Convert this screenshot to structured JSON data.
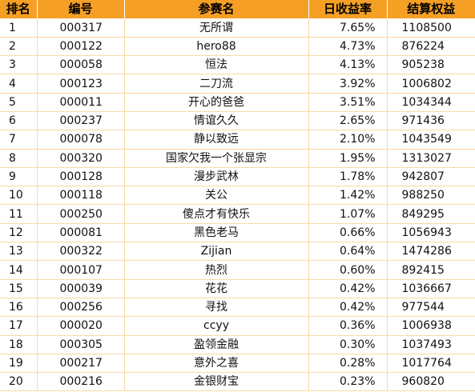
{
  "table": {
    "headers": {
      "rank": "排名",
      "id": "编号",
      "name": "参赛名",
      "rate": "日收益率",
      "equity": "结算权益"
    },
    "rows": [
      {
        "rank": "1",
        "id": "000317",
        "name": "无所谓",
        "rate": "7.65%",
        "equity": "1108500"
      },
      {
        "rank": "2",
        "id": "000122",
        "name": "hero88",
        "rate": "4.73%",
        "equity": "876224"
      },
      {
        "rank": "3",
        "id": "000058",
        "name": "恒法",
        "rate": "4.13%",
        "equity": "905238"
      },
      {
        "rank": "4",
        "id": "000123",
        "name": "二刀流",
        "rate": "3.92%",
        "equity": "1006802"
      },
      {
        "rank": "5",
        "id": "000011",
        "name": "开心的爸爸",
        "rate": "3.51%",
        "equity": "1034344"
      },
      {
        "rank": "6",
        "id": "000237",
        "name": "情谊久久",
        "rate": "2.65%",
        "equity": "971436"
      },
      {
        "rank": "7",
        "id": "000078",
        "name": "静以致远",
        "rate": "2.10%",
        "equity": "1043549"
      },
      {
        "rank": "8",
        "id": "000320",
        "name": "国家欠我一个张显宗",
        "rate": "1.95%",
        "equity": "1313027"
      },
      {
        "rank": "9",
        "id": "000128",
        "name": "漫步武林",
        "rate": "1.78%",
        "equity": "942807"
      },
      {
        "rank": "10",
        "id": "000118",
        "name": "关公",
        "rate": "1.42%",
        "equity": "988250"
      },
      {
        "rank": "11",
        "id": "000250",
        "name": "傻点才有快乐",
        "rate": "1.07%",
        "equity": "849295"
      },
      {
        "rank": "12",
        "id": "000081",
        "name": "黑色老马",
        "rate": "0.66%",
        "equity": "1056943"
      },
      {
        "rank": "13",
        "id": "000322",
        "name": "Zijian",
        "rate": "0.64%",
        "equity": "1474286"
      },
      {
        "rank": "14",
        "id": "000107",
        "name": "热烈",
        "rate": "0.60%",
        "equity": "892415"
      },
      {
        "rank": "15",
        "id": "000039",
        "name": "花花",
        "rate": "0.42%",
        "equity": "1036667"
      },
      {
        "rank": "16",
        "id": "000256",
        "name": "寻找",
        "rate": "0.42%",
        "equity": "977544"
      },
      {
        "rank": "17",
        "id": "000020",
        "name": "ccyy",
        "rate": "0.36%",
        "equity": "1006938"
      },
      {
        "rank": "18",
        "id": "000305",
        "name": "盈领金融",
        "rate": "0.30%",
        "equity": "1037493"
      },
      {
        "rank": "19",
        "id": "000217",
        "name": "意外之喜",
        "rate": "0.28%",
        "equity": "1017764"
      },
      {
        "rank": "20",
        "id": "000216",
        "name": "金银财宝",
        "rate": "0.23%",
        "equity": "960820"
      }
    ]
  },
  "colors": {
    "header_bg": "#f5a025",
    "grid_line": "#fbd9a6"
  }
}
